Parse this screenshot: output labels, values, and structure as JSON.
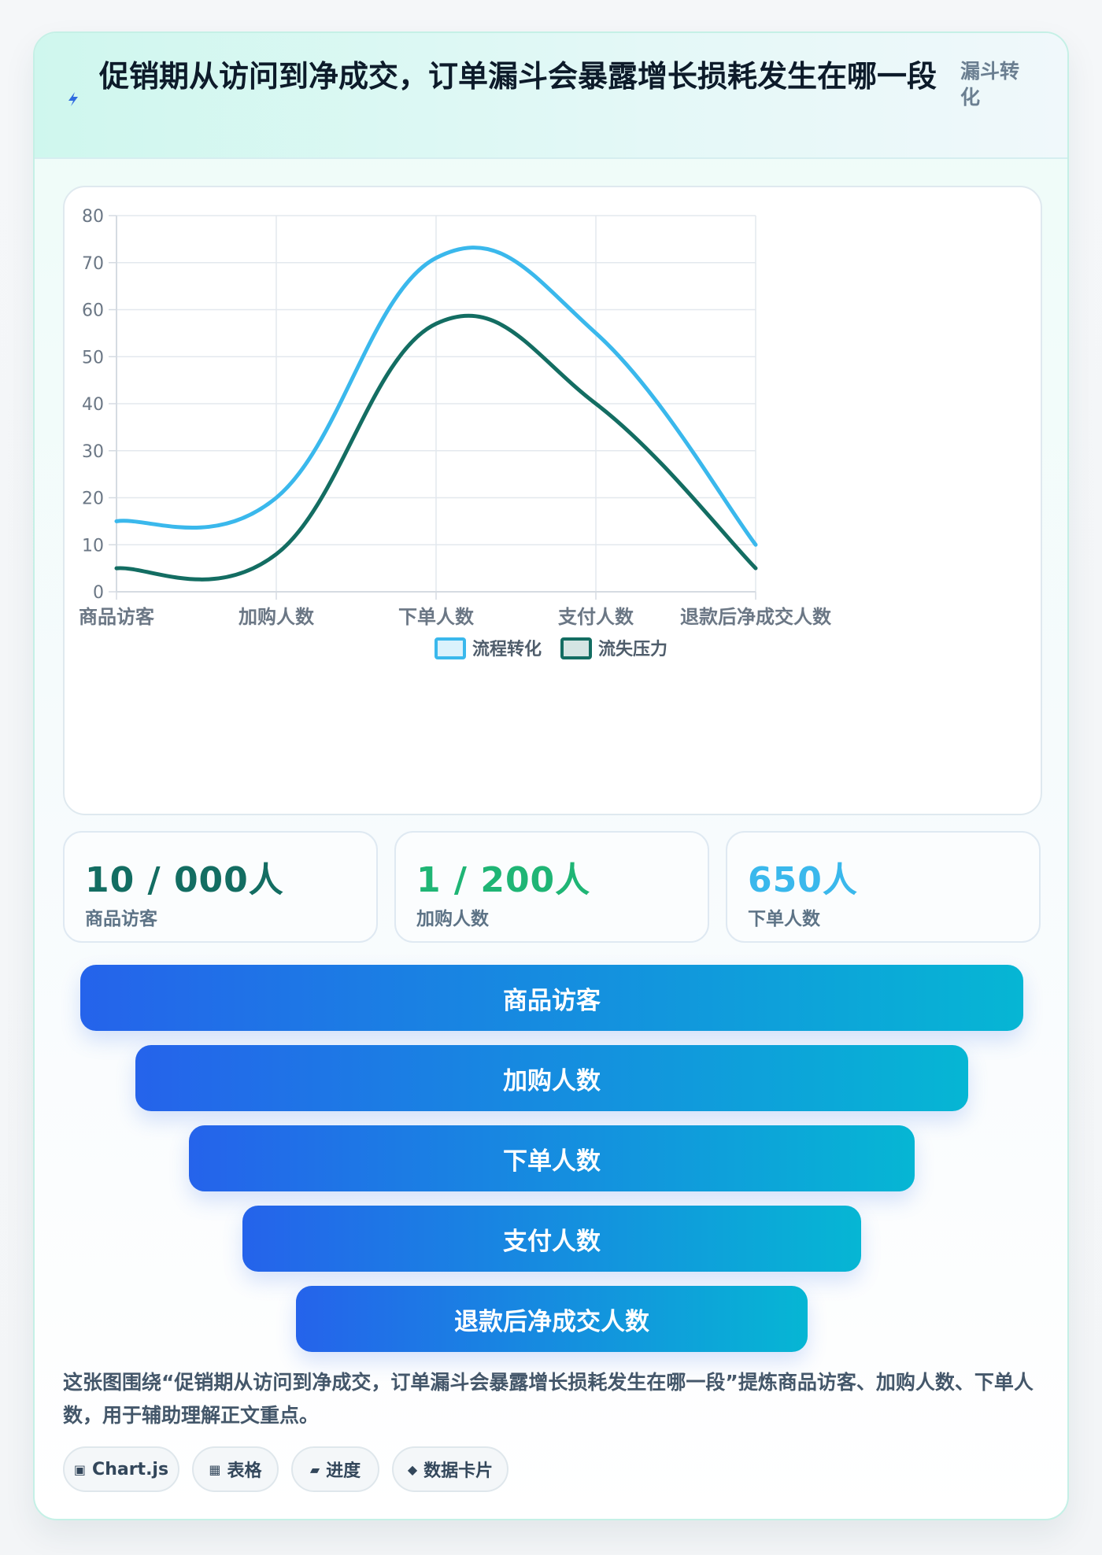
{
  "header": {
    "title": "促销期从访问到净成交，订单漏斗会暴露增长损耗发生在哪一段",
    "tag": "漏斗转化",
    "bolt_icon": "lightning-icon"
  },
  "chart_data": {
    "type": "line",
    "categories": [
      "商品访客",
      "加购人数",
      "下单人数",
      "支付人数",
      "退款后净成交人数"
    ],
    "ylim": [
      0,
      80
    ],
    "yticks": [
      0,
      10,
      20,
      30,
      40,
      50,
      60,
      70,
      80
    ],
    "grid": true,
    "legend_position": "bottom",
    "smooth": true,
    "series": [
      {
        "name": "流程转化",
        "color": "#3ab8ec",
        "values": [
          15,
          20,
          71,
          55,
          10
        ]
      },
      {
        "name": "流失压力",
        "color": "#136d62",
        "values": [
          5,
          8,
          57,
          40,
          5
        ]
      }
    ]
  },
  "stats": [
    {
      "value": "10 / 000人",
      "label": "商品访客",
      "color": "#136d62"
    },
    {
      "value": "1 / 200人",
      "label": "加购人数",
      "color": "#1fb575"
    },
    {
      "value": "650人",
      "label": "下单人数",
      "color": "#3ab8ec"
    }
  ],
  "funnel": [
    "商品访客",
    "加购人数",
    "下单人数",
    "支付人数",
    "退款后净成交人数"
  ],
  "description": "这张图围绕“促销期从访问到净成交，订单漏斗会暴露增长损耗发生在哪一段”提炼商品访客、加购人数、下单人数，用于辅助理解正文重点。",
  "pills": [
    {
      "icon": "▣",
      "label": "Chart.js"
    },
    {
      "icon": "▦",
      "label": "表格"
    },
    {
      "icon": "▰",
      "label": "进度"
    },
    {
      "icon": "◆",
      "label": "数据卡片"
    }
  ]
}
